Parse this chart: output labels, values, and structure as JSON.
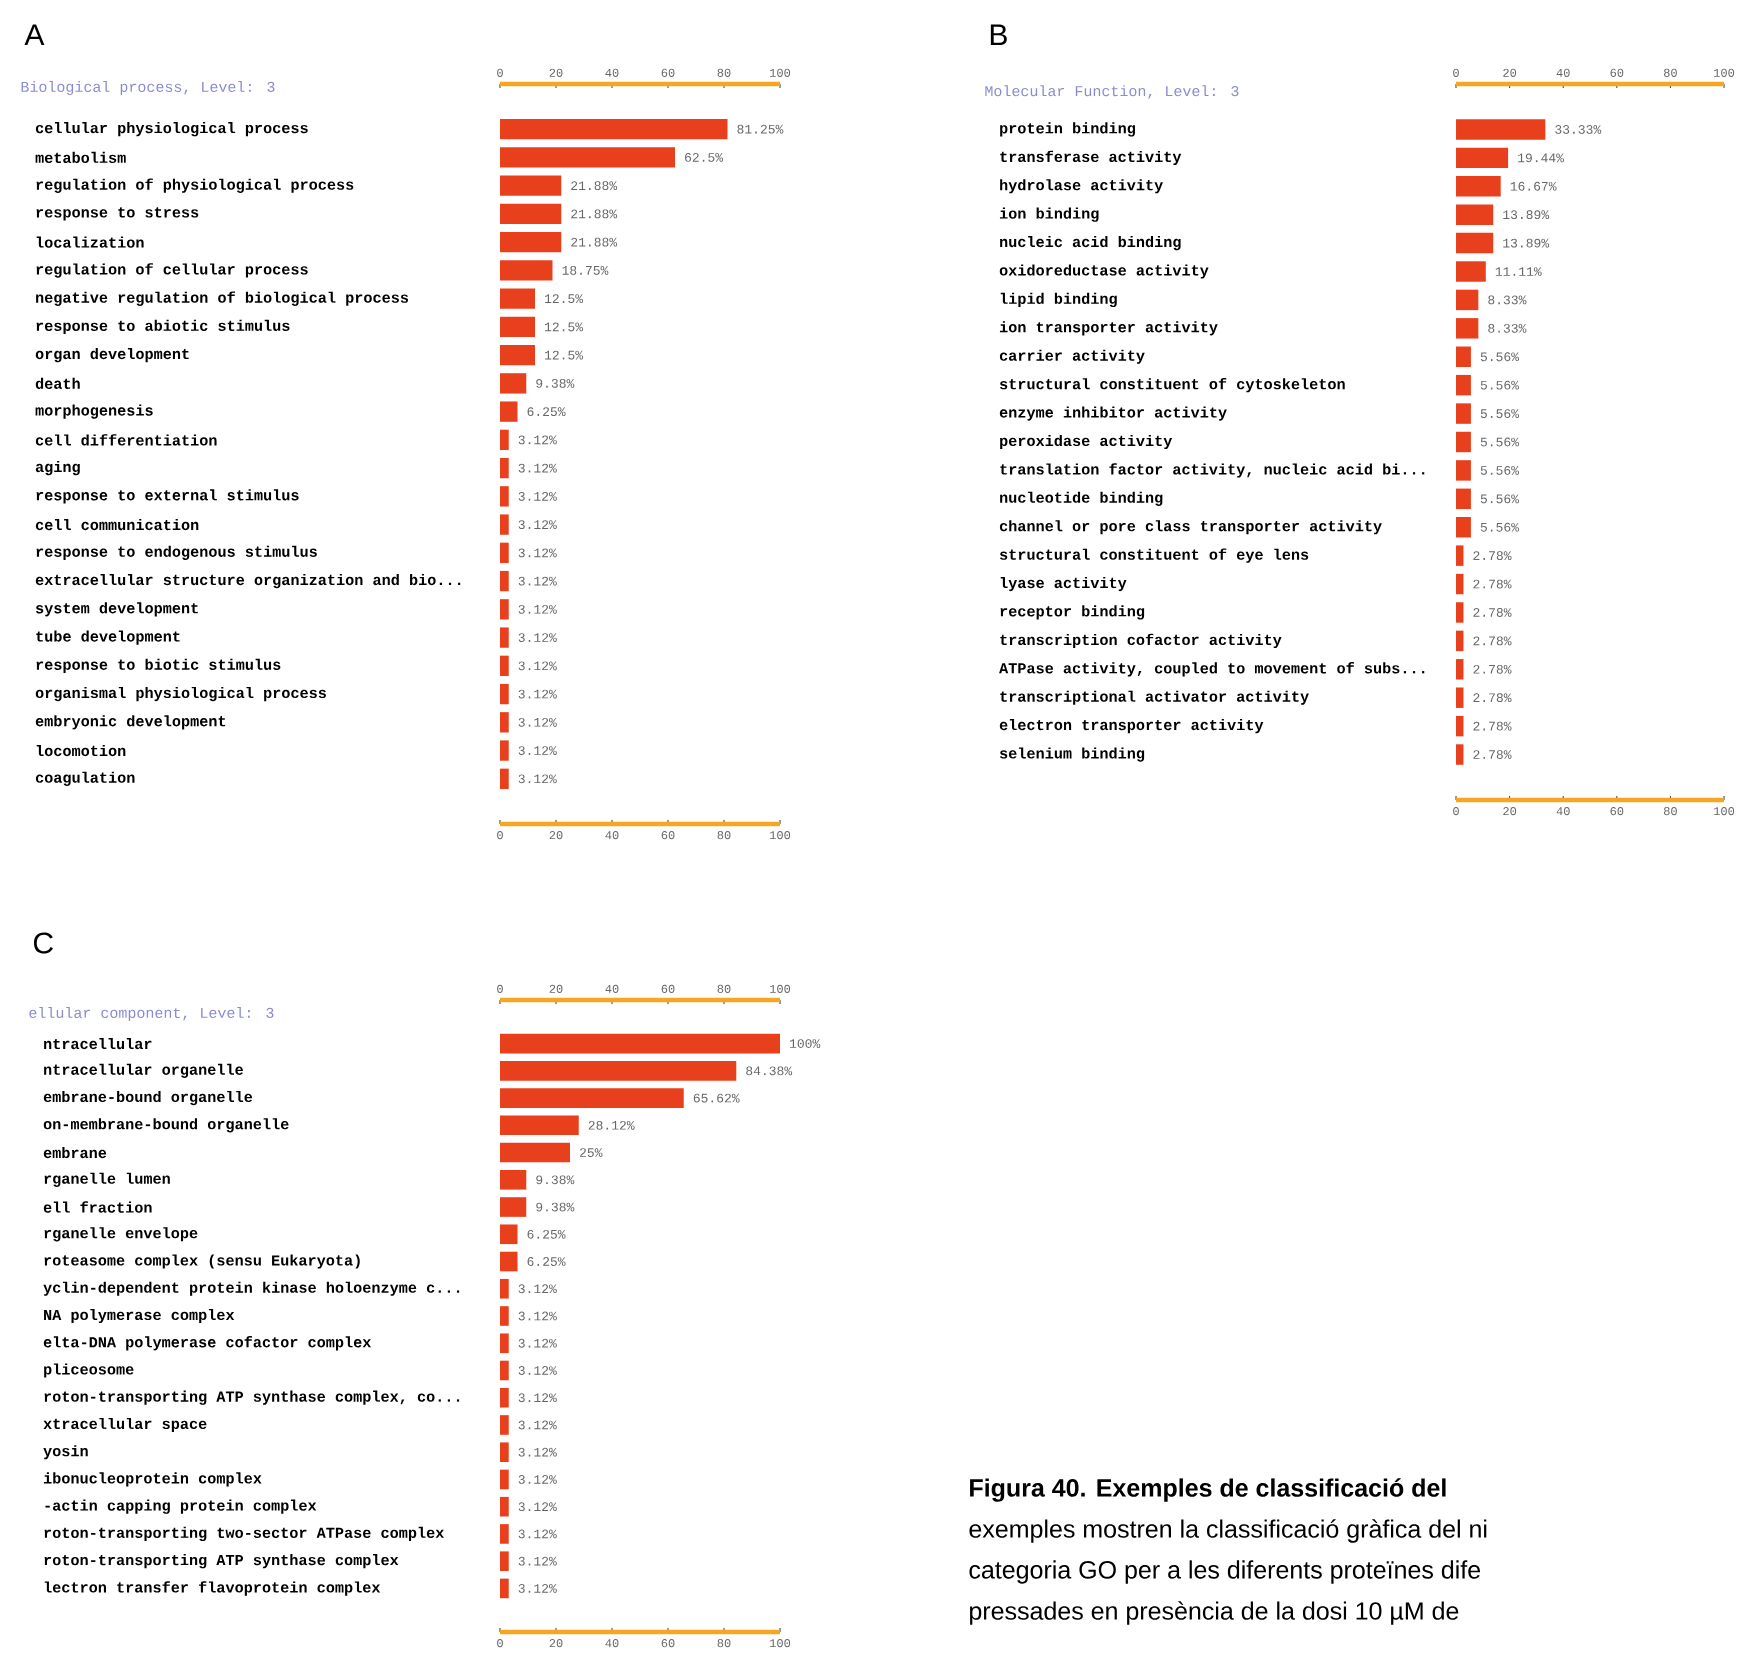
{
  "chart_data": [
    {
      "type": "bar",
      "orientation": "horizontal",
      "title": "A",
      "subtitle": "Biological process, Level: 3",
      "color": "#e8401c",
      "categories": [
        "cellular physiological process",
        "metabolism",
        "regulation of physiological process",
        "response to stress",
        "localization",
        "regulation of cellular process",
        "negative regulation of biological process",
        "response to abiotic stimulus",
        "organ development",
        "death",
        "morphogenesis",
        "cell differentiation",
        "aging",
        "response to external stimulus",
        "cell communication",
        "response to endogenous stimulus",
        "extracellular structure organization and bio...",
        "system development",
        "tube development",
        "response to biotic stimulus",
        "organismal physiological process",
        "embryonic development",
        "locomotion",
        "coagulation"
      ],
      "values": [
        81.25,
        62.5,
        21.88,
        21.88,
        21.88,
        18.75,
        12.5,
        12.5,
        12.5,
        9.38,
        6.25,
        3.12,
        3.12,
        3.12,
        3.12,
        3.12,
        3.12,
        3.12,
        3.12,
        3.12,
        3.12,
        3.12,
        3.12,
        3.12
      ],
      "value_labels": [
        "81.25%",
        "62.5%",
        "21.88%",
        "21.88%",
        "21.88%",
        "18.75%",
        "12.5%",
        "12.5%",
        "12.5%",
        "9.38%",
        "6.25%",
        "3.12%",
        "3.12%",
        "3.12%",
        "3.12%",
        "3.12%",
        "3.12%",
        "3.12%",
        "3.12%",
        "3.12%",
        "3.12%",
        "3.12%",
        "3.12%",
        "3.12%"
      ],
      "xlim": [
        0,
        100
      ],
      "xticks": [
        0,
        20,
        40,
        60,
        80,
        100
      ],
      "x2lim": [
        0,
        100
      ],
      "x2ticks": [
        0,
        20,
        40,
        60,
        80,
        100
      ]
    },
    {
      "type": "bar",
      "orientation": "horizontal",
      "title": "B",
      "subtitle": "Molecular Function, Level: 3",
      "color": "#e8401c",
      "categories": [
        "protein binding",
        "transferase activity",
        "hydrolase activity",
        "ion binding",
        "nucleic acid binding",
        "oxidoreductase activity",
        "lipid binding",
        "ion transporter activity",
        "carrier activity",
        "structural constituent of cytoskeleton",
        "enzyme inhibitor activity",
        "peroxidase activity",
        "translation factor activity, nucleic acid bi...",
        "nucleotide binding",
        "channel or pore class transporter activity",
        "structural constituent of eye lens",
        "lyase activity",
        "receptor binding",
        "transcription cofactor activity",
        "ATPase activity, coupled to movement of subs...",
        "transcriptional activator activity",
        "electron transporter activity",
        "selenium binding"
      ],
      "values": [
        33.33,
        19.44,
        16.67,
        13.89,
        13.89,
        11.11,
        8.33,
        8.33,
        5.56,
        5.56,
        5.56,
        5.56,
        5.56,
        5.56,
        5.56,
        2.78,
        2.78,
        2.78,
        2.78,
        2.78,
        2.78,
        2.78,
        2.78
      ],
      "value_labels": [
        "33.33%",
        "19.44%",
        "16.67%",
        "13.89%",
        "13.89%",
        "11.11%",
        "8.33%",
        "8.33%",
        "5.56%",
        "5.56%",
        "5.56%",
        "5.56%",
        "5.56%",
        "5.56%",
        "5.56%",
        "2.78%",
        "2.78%",
        "2.78%",
        "2.78%",
        "2.78%",
        "2.78%",
        "2.78%",
        "2.78%"
      ],
      "xlim": [
        0,
        100
      ],
      "xticks": [
        0,
        20,
        40,
        60,
        80,
        100
      ],
      "x2lim": [
        0,
        100
      ],
      "x2ticks": [
        0,
        20,
        40,
        60,
        80,
        100
      ]
    },
    {
      "type": "bar",
      "orientation": "horizontal",
      "title": "C",
      "subtitle": "ellular component, Level: 3",
      "color": "#e8401c",
      "categories": [
        "ntracellular",
        "ntracellular organelle",
        "embrane-bound organelle",
        "on-membrane-bound organelle",
        "embrane",
        "rganelle lumen",
        "ell fraction",
        "rganelle envelope",
        "roteasome complex (sensu Eukaryota)",
        "yclin-dependent protein kinase holoenzyme c...",
        "NA polymerase complex",
        "elta-DNA polymerase cofactor complex",
        "pliceosome",
        "roton-transporting ATP synthase complex, co...",
        "xtracellular space",
        "yosin",
        "ibonucleoprotein complex",
        "-actin capping protein complex",
        "roton-transporting two-sector ATPase complex",
        "roton-transporting ATP synthase complex",
        "lectron transfer flavoprotein complex"
      ],
      "values": [
        100,
        84.38,
        65.62,
        28.12,
        25,
        9.38,
        9.38,
        6.25,
        6.25,
        3.12,
        3.12,
        3.12,
        3.12,
        3.12,
        3.12,
        3.12,
        3.12,
        3.12,
        3.12,
        3.12,
        3.12
      ],
      "value_labels": [
        "100%",
        "84.38%",
        "65.62%",
        "28.12%",
        "25%",
        "9.38%",
        "9.38%",
        "6.25%",
        "6.25%",
        "3.12%",
        "3.12%",
        "3.12%",
        "3.12%",
        "3.12%",
        "3.12%",
        "3.12%",
        "3.12%",
        "3.12%",
        "3.12%",
        "3.12%",
        "3.12%"
      ],
      "xlim": [
        0,
        100
      ],
      "xticks": [
        0,
        20,
        40,
        60,
        80,
        100
      ],
      "x2lim": [
        0,
        100
      ],
      "x2ticks": [
        0,
        20,
        40,
        60,
        80,
        100
      ],
      "annotations": [
        "Figura 40. Exemples de classificació del",
        "exemples mostren la classificació gràfica del ni",
        "categoria GO per a les diferents proteïnes dife",
        "pressades en presència de la dosi 10 µM de"
      ]
    }
  ]
}
